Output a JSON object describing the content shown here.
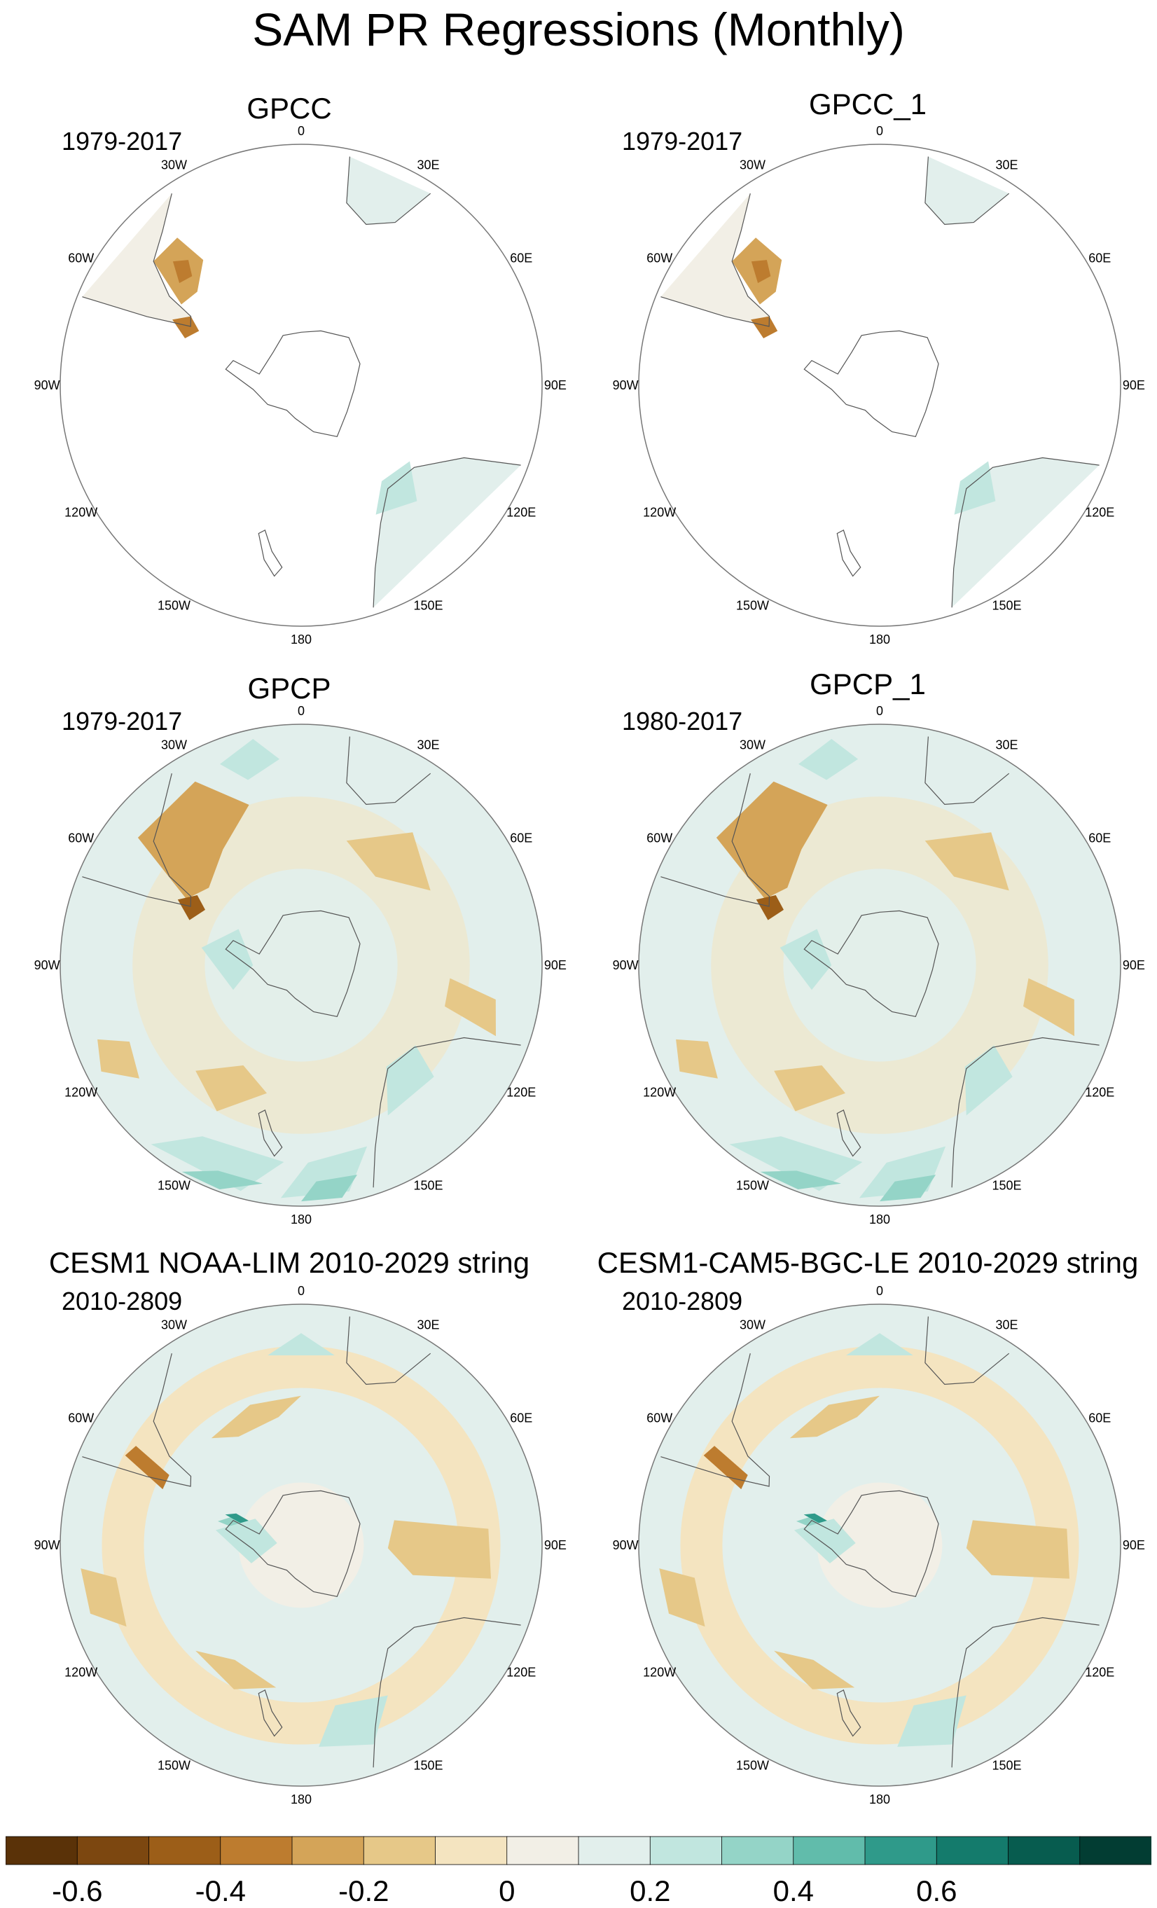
{
  "title": "SAM PR Regressions (Monthly)",
  "panels": [
    {
      "title": "GPCC",
      "period": "1979-2017",
      "style": "land"
    },
    {
      "title": "GPCC_1",
      "period": "1979-2017",
      "style": "land"
    },
    {
      "title": "GPCP",
      "period": "1979-2017",
      "style": "global"
    },
    {
      "title": "GPCP_1",
      "period": "1980-2017",
      "style": "global"
    },
    {
      "title": "CESM1 NOAA-LIM 2010-2029 string",
      "period": "2010-2809",
      "style": "model"
    },
    {
      "title": "CESM1-CAM5-BGC-LE 2010-2029 string",
      "period": "2010-2809",
      "style": "model"
    }
  ],
  "longitude_labels": [
    "0",
    "30E",
    "60E",
    "90E",
    "120E",
    "150E",
    "180",
    "150W",
    "120W",
    "90W",
    "60W",
    "30W"
  ],
  "colorbar": {
    "colors": [
      "#5a3208",
      "#7c4710",
      "#9c5e18",
      "#bd7c2f",
      "#d4a458",
      "#e6c888",
      "#f4e4c0",
      "#f2efe6",
      "#e2efec",
      "#c1e6df",
      "#94d4c7",
      "#61bcab",
      "#2f9a8a",
      "#147b6c",
      "#075c4f",
      "#023d33"
    ],
    "ticks": [
      "-0.6",
      "-0.4",
      "-0.2",
      "0",
      "0.2",
      "0.4",
      "0.6"
    ],
    "tick_positions": [
      1,
      3,
      5,
      7,
      9,
      11,
      13
    ]
  }
}
